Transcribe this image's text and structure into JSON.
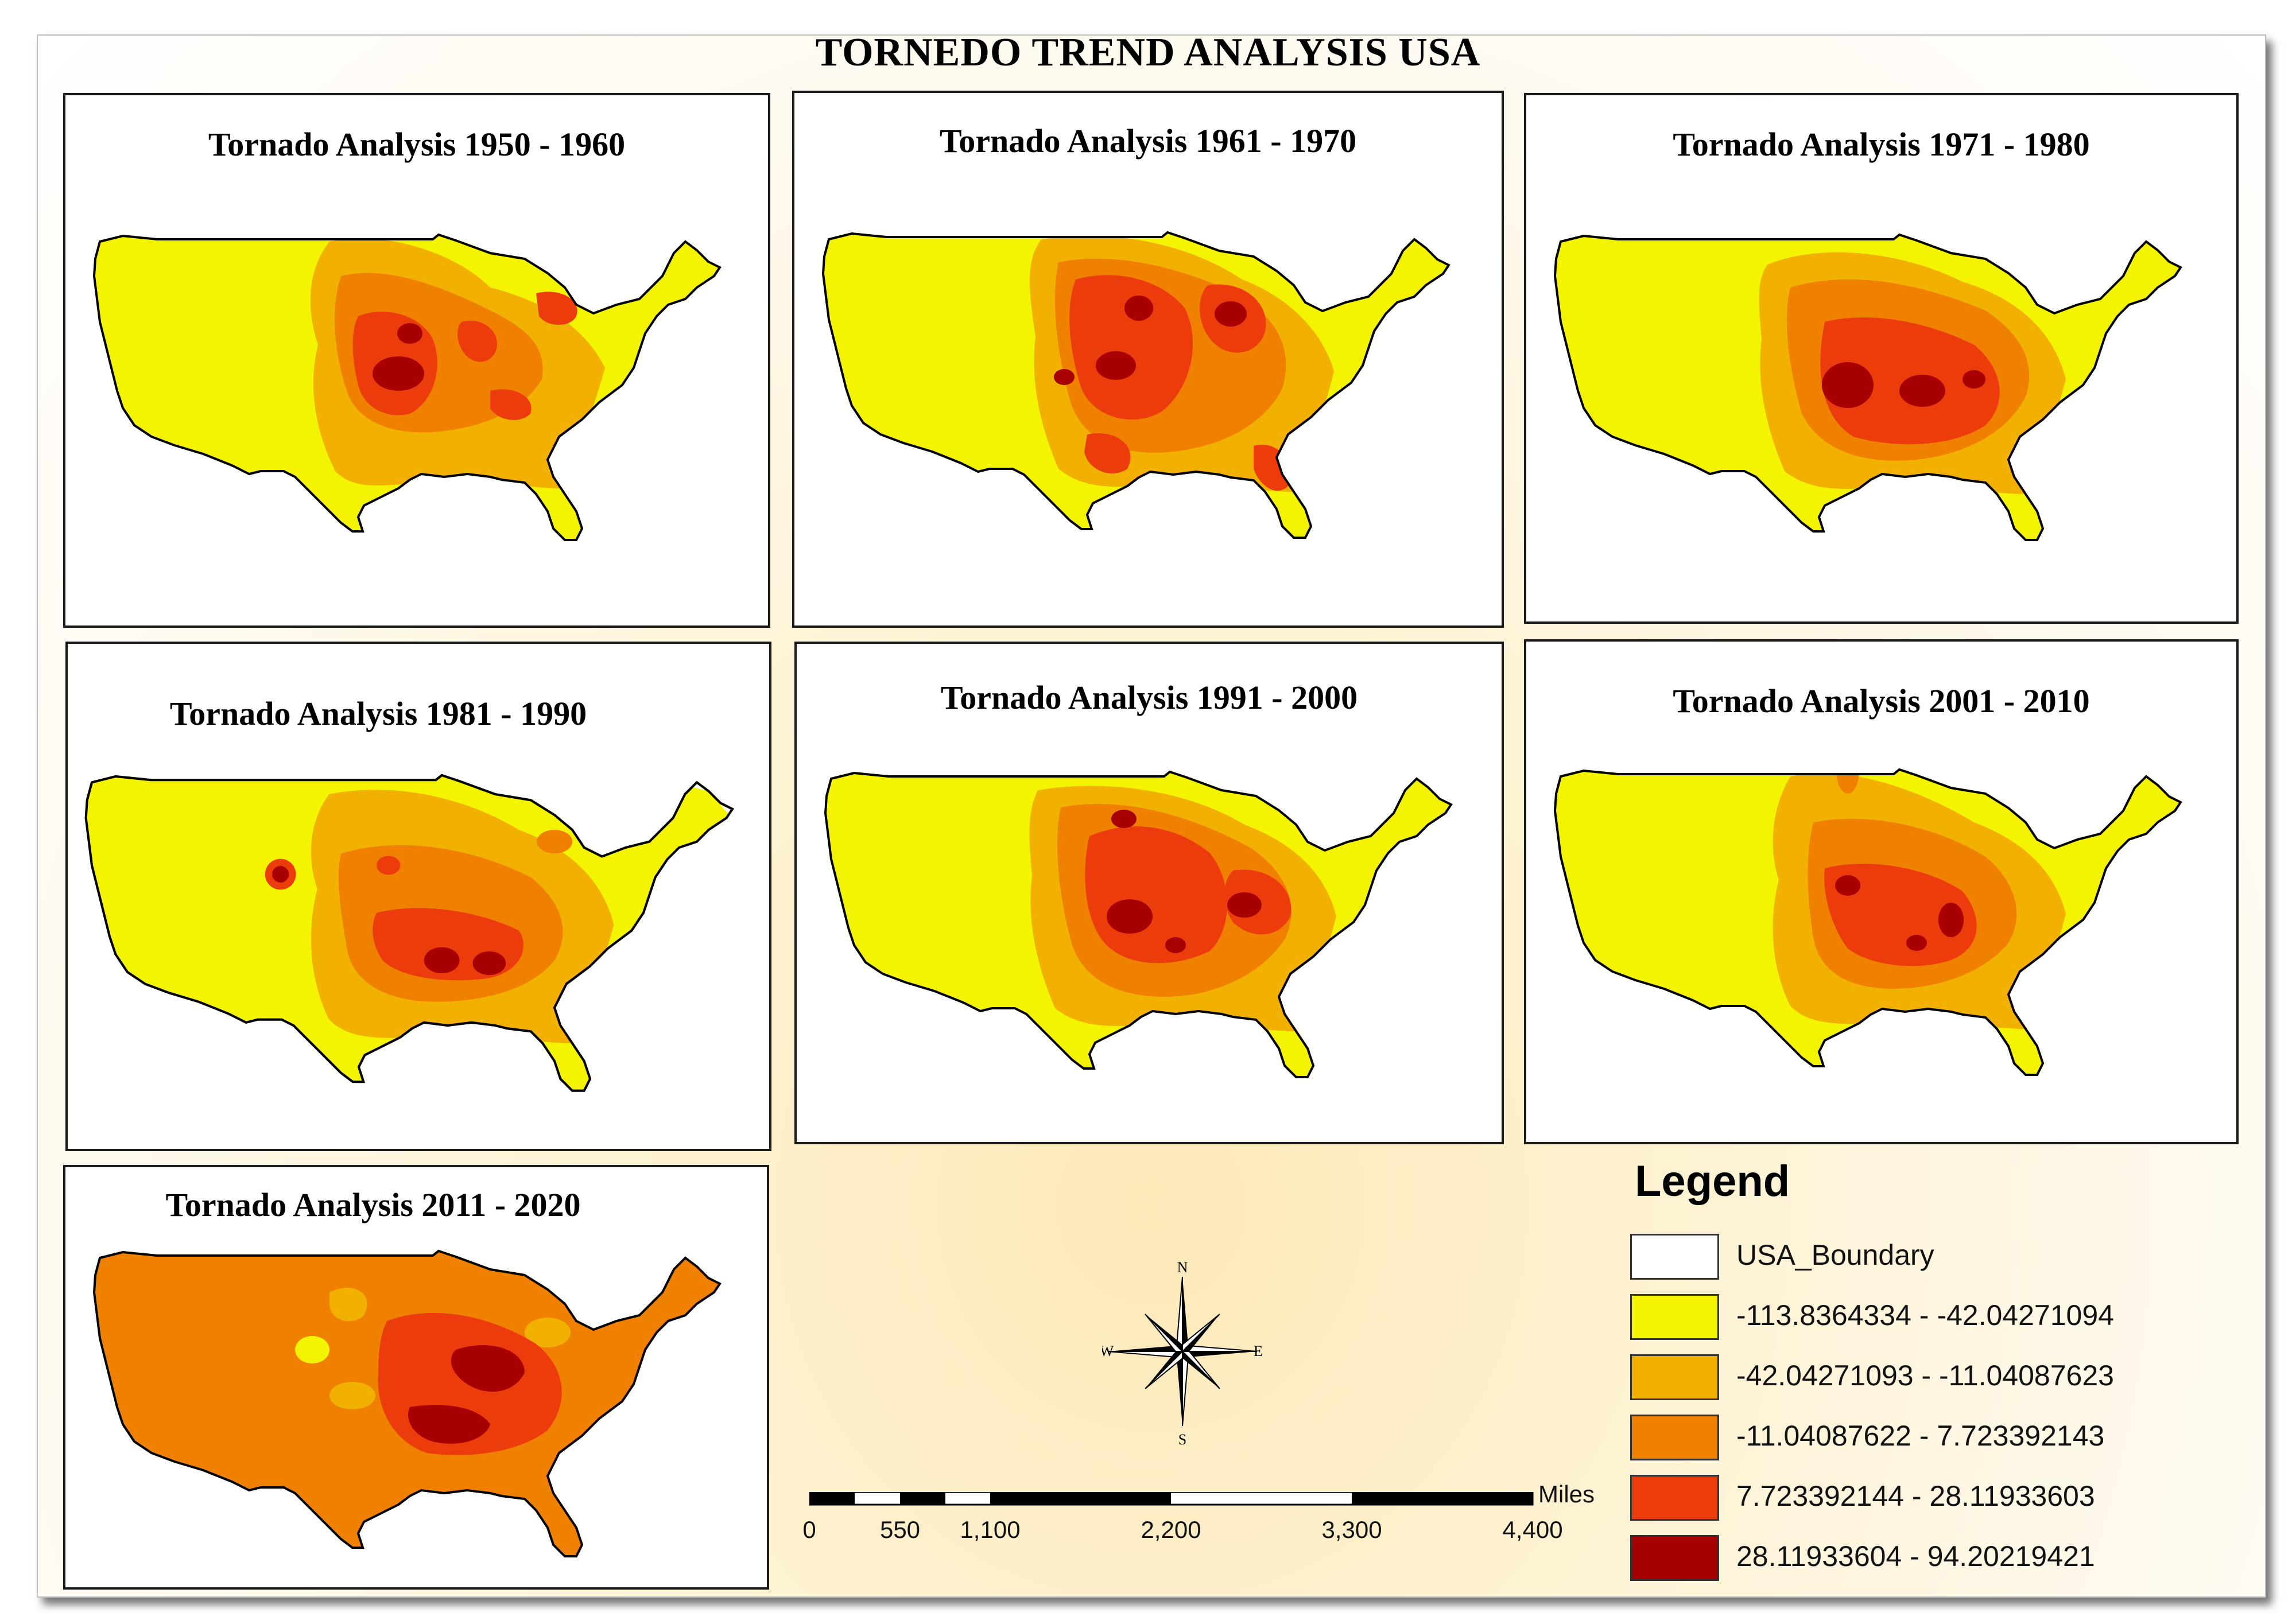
{
  "title": "TORNEDO TREND ANALYSIS USA",
  "colors": {
    "class1": "#f4f400",
    "class2": "#f2b100",
    "class3": "#f08000",
    "class4": "#ec3c0c",
    "class5": "#a80000",
    "boundary": "#ffffff",
    "outline": "#000000"
  },
  "panels": [
    {
      "title": "Tornado Analysis 1950 - 1960",
      "base": "class1"
    },
    {
      "title": "Tornado Analysis 1961 - 1970",
      "base": "class1"
    },
    {
      "title": "Tornado Analysis 1971 - 1980",
      "base": "class1"
    },
    {
      "title": "Tornado Analysis 1981 - 1990",
      "base": "class1"
    },
    {
      "title": "Tornado Analysis 1991 - 2000",
      "base": "class1"
    },
    {
      "title": "Tornado Analysis 2001 - 2010",
      "base": "class1"
    },
    {
      "title": "Tornado Analysis 2011 - 2020",
      "base": "class3"
    }
  ],
  "legend": {
    "title": "Legend",
    "items": [
      {
        "label": "USA_Boundary",
        "color": "#ffffff"
      },
      {
        "label": "-113.8364334 - -42.04271094",
        "color": "#f4f400"
      },
      {
        "label": "-42.04271093 - -11.04087623",
        "color": "#f2b100"
      },
      {
        "label": "-11.04087622 - 7.723392143",
        "color": "#f08000"
      },
      {
        "label": "7.723392144 - 28.11933603",
        "color": "#ec3c0c"
      },
      {
        "label": "28.11933604 - 94.20219421",
        "color": "#a80000"
      }
    ]
  },
  "north_arrow": {
    "n": "N",
    "s": "S",
    "e": "E",
    "w": "W",
    "icon": "compass-rose-icon"
  },
  "scale_bar": {
    "units": "Miles",
    "ticks": [
      "0",
      "550",
      "1,100",
      "2,200",
      "3,300",
      "4,400"
    ]
  }
}
